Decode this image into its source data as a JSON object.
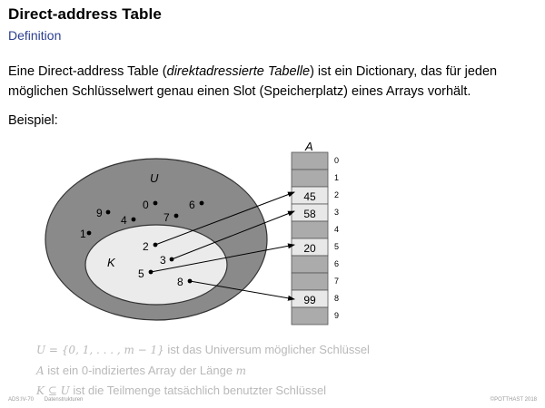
{
  "slide": {
    "title": "Direct-address Table",
    "subtitle": "Definition",
    "para_prefix": "Eine Direct-address Table (",
    "para_italic": "direktadressierte Tabelle",
    "para_suffix": ") ist ein Dictionary, das für jeden möglichen Schlüsselwert genau einen Slot (Speicherplatz) eines Arrays vorhält.",
    "example_label": "Beispiel:"
  },
  "diagram": {
    "array_label": "A",
    "universe_label": "U",
    "keyset_label": "K",
    "universe_keys": [
      "0",
      "6",
      "9",
      "4",
      "7",
      "1"
    ],
    "used_keys": [
      "2",
      "3",
      "5",
      "8"
    ],
    "slot_indices": [
      "0",
      "1",
      "2",
      "3",
      "4",
      "5",
      "6",
      "7",
      "8",
      "9"
    ],
    "slot_values": [
      "",
      "",
      "45",
      "58",
      "",
      "20",
      "",
      "",
      "99",
      ""
    ],
    "colors": {
      "filled_slot": "#e8e8e8",
      "empty_slot": "#ababab",
      "universe": "#8a8a8a",
      "keyset": "#ebebeb"
    }
  },
  "notes": {
    "n1_math": "U = {0, 1, . . . , m − 1}",
    "n1_text": " ist das Universum möglicher Schlüssel",
    "n2_math": "A",
    "n2_text": " ist ein 0-indiziertes Array der Länge ",
    "n2_math2": "m",
    "n3_math": "K ⊆ U",
    "n3_text": " ist die Teilmenge tatsächlich benutzter Schlüssel"
  },
  "footer": {
    "slide_no": "ADS:IV-70",
    "section": "Datenstrukturen",
    "copyright": "©POTTHAST 2018"
  }
}
